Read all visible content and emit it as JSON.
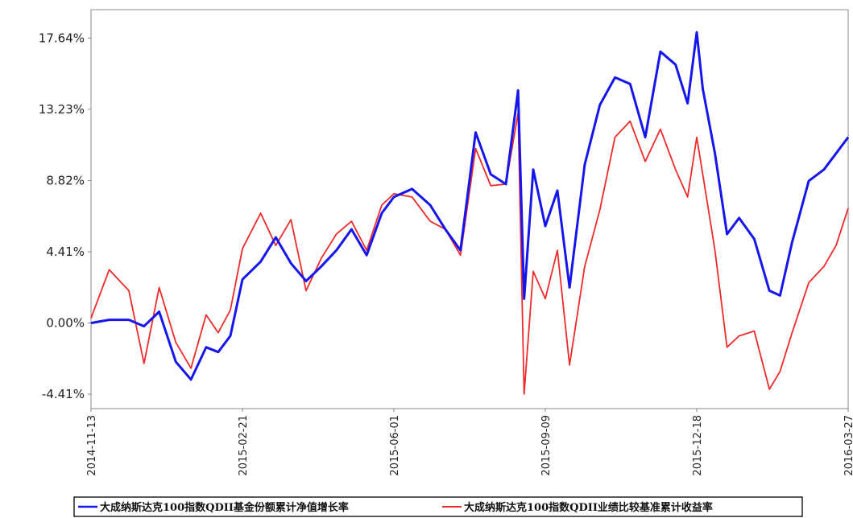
{
  "chart_data": {
    "type": "line",
    "title": "",
    "xlabel": "",
    "ylabel": "",
    "y_unit": "%",
    "ylim": [
      -5.3,
      19.4
    ],
    "y_ticks": [
      "17.64%",
      "13.23%",
      "8.82%",
      "4.41%",
      "0.00%",
      "-4.41%"
    ],
    "y_tick_values": [
      17.64,
      13.23,
      8.82,
      4.41,
      0.0,
      -4.41
    ],
    "x_ticks": [
      "2014-11-13",
      "2015-02-21",
      "2015-06-01",
      "2015-09-09",
      "2015-12-18",
      "2016-03-27"
    ],
    "x_range": [
      "2014-11-13",
      "2016-03-27"
    ],
    "grid": false,
    "legend_position": "bottom",
    "series": [
      {
        "name": "大成纳斯达克100指数QDII基金份额累计净值增长率",
        "color": "#1515ee",
        "x": [
          "2014-11-13",
          "2014-11-25",
          "2014-12-08",
          "2014-12-18",
          "2014-12-28",
          "2015-01-08",
          "2015-01-18",
          "2015-01-28",
          "2015-02-05",
          "2015-02-13",
          "2015-02-21",
          "2015-03-05",
          "2015-03-15",
          "2015-03-25",
          "2015-04-04",
          "2015-04-14",
          "2015-04-24",
          "2015-05-04",
          "2015-05-14",
          "2015-05-24",
          "2015-06-01",
          "2015-06-13",
          "2015-06-25",
          "2015-07-05",
          "2015-07-15",
          "2015-07-25",
          "2015-08-04",
          "2015-08-14",
          "2015-08-22",
          "2015-08-26",
          "2015-09-01",
          "2015-09-09",
          "2015-09-17",
          "2015-09-25",
          "2015-10-05",
          "2015-10-15",
          "2015-10-25",
          "2015-11-04",
          "2015-11-14",
          "2015-11-24",
          "2015-12-04",
          "2015-12-12",
          "2015-12-18",
          "2015-12-22",
          "2015-12-30",
          "2016-01-07",
          "2016-01-15",
          "2016-01-25",
          "2016-02-04",
          "2016-02-11",
          "2016-02-19",
          "2016-03-01",
          "2016-03-11",
          "2016-03-19",
          "2016-03-27"
        ],
        "values": [
          0.0,
          0.2,
          0.2,
          -0.2,
          0.7,
          -2.4,
          -3.5,
          -1.5,
          -1.8,
          -0.8,
          2.7,
          3.8,
          5.3,
          3.7,
          2.6,
          3.5,
          4.5,
          5.8,
          4.2,
          6.8,
          7.8,
          8.3,
          7.3,
          5.8,
          4.5,
          11.8,
          9.2,
          8.6,
          14.4,
          1.5,
          9.5,
          6.0,
          8.2,
          2.2,
          9.8,
          13.5,
          15.2,
          14.8,
          11.5,
          16.8,
          16.0,
          13.6,
          18.0,
          14.5,
          10.5,
          5.5,
          6.5,
          5.2,
          2.0,
          1.7,
          5.0,
          8.8,
          9.5,
          10.5,
          11.5
        ]
      },
      {
        "name": "大成纳斯达克100指数QDII业绩比较基准累计收益率",
        "color": "#ee2a2a",
        "x": [
          "2014-11-13",
          "2014-11-25",
          "2014-12-08",
          "2014-12-18",
          "2014-12-28",
          "2015-01-08",
          "2015-01-18",
          "2015-01-28",
          "2015-02-05",
          "2015-02-13",
          "2015-02-21",
          "2015-03-05",
          "2015-03-15",
          "2015-03-25",
          "2015-04-04",
          "2015-04-14",
          "2015-04-24",
          "2015-05-04",
          "2015-05-14",
          "2015-05-24",
          "2015-06-01",
          "2015-06-13",
          "2015-06-25",
          "2015-07-05",
          "2015-07-15",
          "2015-07-25",
          "2015-08-04",
          "2015-08-14",
          "2015-08-22",
          "2015-08-26",
          "2015-09-01",
          "2015-09-09",
          "2015-09-17",
          "2015-09-25",
          "2015-10-05",
          "2015-10-15",
          "2015-10-25",
          "2015-11-04",
          "2015-11-14",
          "2015-11-24",
          "2015-12-04",
          "2015-12-12",
          "2015-12-18",
          "2015-12-22",
          "2015-12-30",
          "2016-01-07",
          "2016-01-15",
          "2016-01-25",
          "2016-02-04",
          "2016-02-11",
          "2016-02-19",
          "2016-03-01",
          "2016-03-11",
          "2016-03-19",
          "2016-03-27"
        ],
        "values": [
          0.3,
          3.3,
          2.0,
          -2.5,
          2.2,
          -1.2,
          -2.8,
          0.5,
          -0.6,
          0.8,
          4.6,
          6.8,
          4.8,
          6.4,
          2.0,
          4.0,
          5.5,
          6.3,
          4.5,
          7.3,
          8.0,
          7.8,
          6.3,
          5.8,
          4.2,
          10.8,
          8.5,
          8.6,
          13.0,
          -4.4,
          3.2,
          1.5,
          4.5,
          -2.6,
          3.5,
          7.0,
          11.5,
          12.5,
          10.0,
          12.0,
          9.5,
          7.8,
          11.5,
          9.2,
          4.5,
          -1.5,
          -0.8,
          -0.5,
          -4.1,
          -3.0,
          -0.6,
          2.5,
          3.5,
          4.8,
          7.1
        ]
      }
    ]
  }
}
